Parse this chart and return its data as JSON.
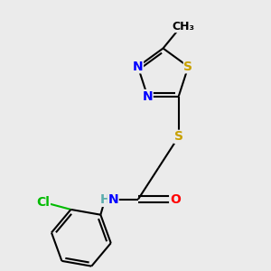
{
  "background_color": "#ebebeb",
  "atom_colors": {
    "N": "#0000ff",
    "S": "#c8a000",
    "O": "#ff0000",
    "Cl": "#00bb00",
    "C": "#000000",
    "H": "#5aadad"
  },
  "bond_color": "#000000",
  "bond_width": 1.5,
  "font_size": 10
}
